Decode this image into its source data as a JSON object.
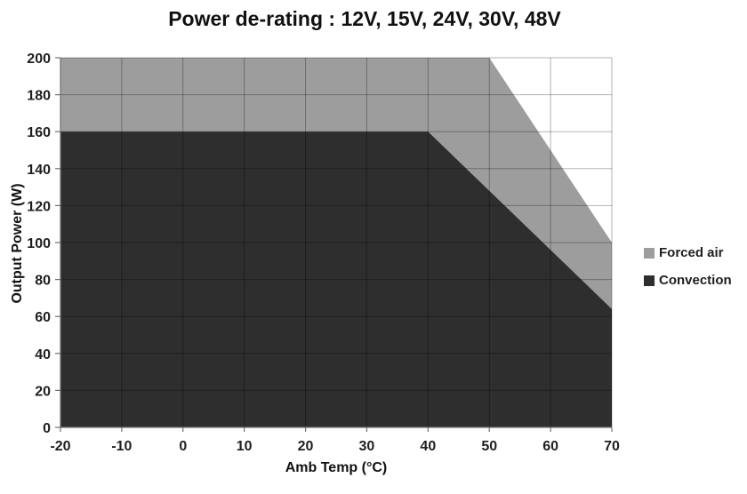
{
  "chart_data": {
    "type": "area",
    "title": "Power de-rating : 12V, 15V, 24V, 30V, 48V",
    "xlabel": "Amb Temp (°C)",
    "ylabel": "Output Power (W)",
    "xlim": [
      -20,
      70
    ],
    "ylim": [
      0,
      200
    ],
    "xtick_step": 10,
    "ytick_step": 20,
    "xticks": [
      -20,
      -10,
      0,
      10,
      20,
      30,
      40,
      50,
      60,
      70
    ],
    "yticks": [
      0,
      20,
      40,
      60,
      80,
      100,
      120,
      140,
      160,
      180,
      200
    ],
    "grid": true,
    "legend_position": "right",
    "series": [
      {
        "name": "Forced air",
        "color": "#9D9D9D",
        "points": [
          {
            "x": -20,
            "y": 200
          },
          {
            "x": 50,
            "y": 200
          },
          {
            "x": 70,
            "y": 100
          }
        ]
      },
      {
        "name": "Convection",
        "color": "#2E2E2E",
        "points": [
          {
            "x": -20,
            "y": 160
          },
          {
            "x": 40,
            "y": 160
          },
          {
            "x": 70,
            "y": 64
          }
        ]
      }
    ],
    "colors": {
      "background": "#FFFFFF",
      "gridline": "rgba(0,0,0,0.30)",
      "axis_line": "#707070",
      "tick_mark": "#707070",
      "tick_label": "#1F1F1F",
      "title_text": "#111111"
    }
  }
}
